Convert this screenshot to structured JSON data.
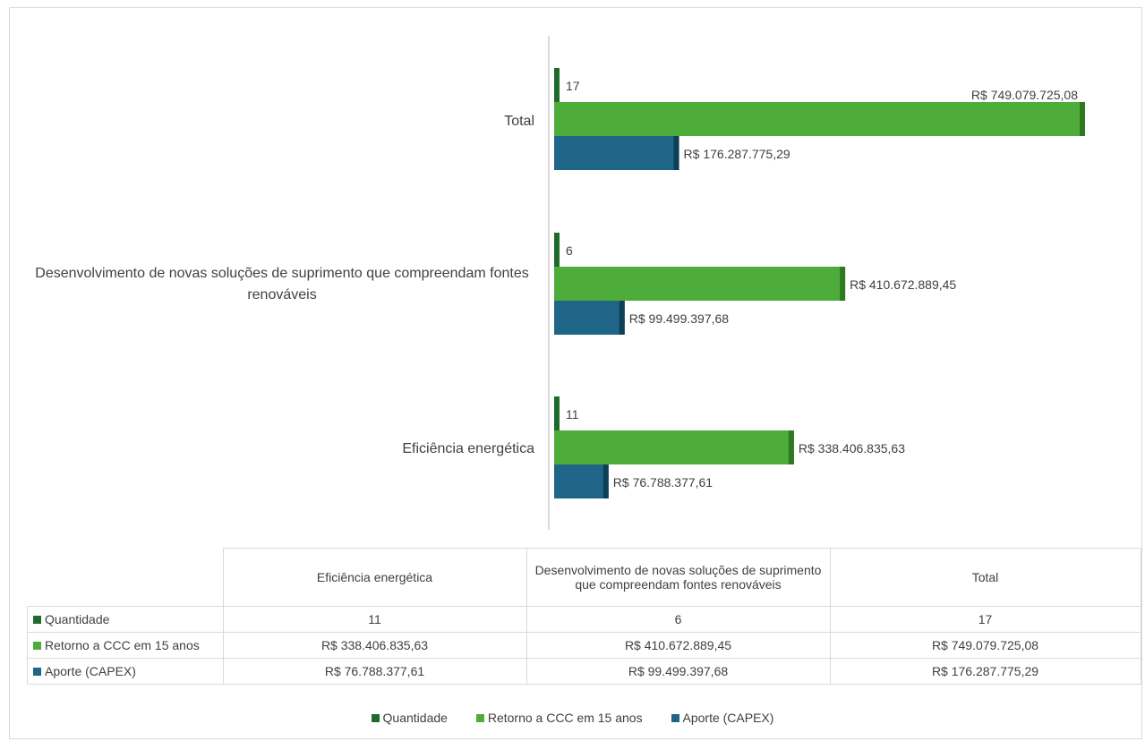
{
  "chart_data": {
    "type": "bar",
    "orientation": "horizontal",
    "categories": [
      "Eficiência energética",
      "Desenvolvimento de novas soluções de suprimento que compreendam fontes renováveis",
      "Total"
    ],
    "series": [
      {
        "name": "Quantidade",
        "values": [
          11,
          6,
          17
        ],
        "labels": [
          "11",
          "6",
          "17"
        ],
        "color": "#1e6b2b"
      },
      {
        "name": "Retorno a CCC em 15 anos",
        "values": [
          338406835.63,
          410672889.45,
          749079725.08
        ],
        "labels": [
          "R$ 338.406.835,63",
          "R$ 410.672.889,45",
          "R$ 749.079.725,08"
        ],
        "color": "#4ead3a"
      },
      {
        "name": "Aporte (CAPEX)",
        "values": [
          76788377.61,
          99499397.68,
          176287775.29
        ],
        "labels": [
          "R$ 76.788.377,61",
          "R$ 99.499.397,68",
          "R$ 176.287.775,29"
        ],
        "color": "#1f6587"
      }
    ],
    "legend_position": "bottom",
    "grid": false,
    "data_table": true
  },
  "table": {
    "headers": [
      "Eficiência energética",
      "Desenvolvimento de novas soluções de suprimento que compreendam fontes renováveis",
      "Total"
    ],
    "rows": [
      {
        "label": "Quantidade",
        "values": [
          "11",
          "6",
          "17"
        ]
      },
      {
        "label": "Retorno a CCC em 15 anos",
        "values": [
          "R$ 338.406.835,63",
          "R$ 410.672.889,45",
          "R$ 749.079.725,08"
        ]
      },
      {
        "label": "Aporte (CAPEX)",
        "values": [
          "R$ 76.788.377,61",
          "R$ 99.499.397,68",
          "R$ 176.287.775,29"
        ]
      }
    ]
  },
  "legend": [
    "Quantidade",
    "Retorno a CCC em 15 anos",
    "Aporte (CAPEX)"
  ]
}
